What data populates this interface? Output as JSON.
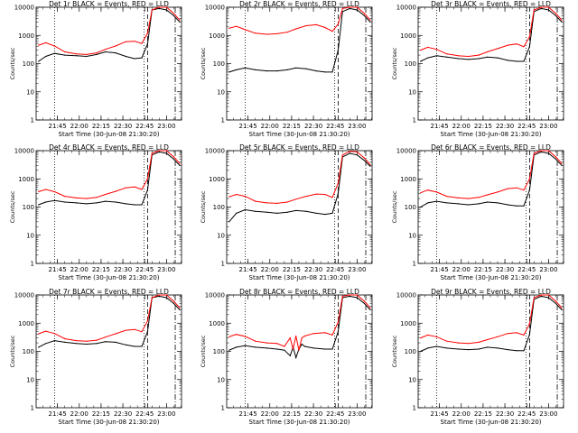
{
  "layout": {
    "title_pattern": "Det {n}r BLACK = Events, RED = LLD"
  },
  "colors": {
    "events": "#000000",
    "lld": "#ff0000",
    "background": "#ffffff"
  },
  "chart_data": {
    "type": "line",
    "xlabel": "Start Time (30-Jun-08 21:30:20)",
    "ylabel": "Counts/sec",
    "ylim": [
      1,
      10000
    ],
    "yscale": "log",
    "xlim": [
      "21:30:20",
      "23:10:20"
    ],
    "x_ticks": [
      "21:45",
      "22:00",
      "22:15",
      "22:30",
      "22:45",
      "23:00"
    ],
    "y_ticks": [
      "1",
      "10",
      "100",
      "1000",
      "10000"
    ],
    "vlines_dotted": [
      "21:43:00",
      "22:44:30"
    ],
    "vlines_dashed": [
      "22:47:00"
    ],
    "vlines_dashdot": [
      "23:06:00"
    ],
    "panels": [
      {
        "title": "Det 1r BLACK = Events, RED = LLD",
        "series": [
          {
            "name": "BLACK = Events",
            "x": [
              "21:32",
              "21:37",
              "21:43",
              "21:50",
              "21:58",
              "22:05",
              "22:12",
              "22:18",
              "22:25",
              "22:32",
              "22:38",
              "22:43",
              "22:47",
              "22:50",
              "22:55",
              "23:00",
              "23:05",
              "23:09"
            ],
            "y": [
              120,
              180,
              230,
              200,
              190,
              180,
              210,
              260,
              240,
              180,
              150,
              160,
              500,
              8000,
              9000,
              8000,
              5000,
              3000
            ]
          },
          {
            "name": "RED = LLD",
            "x": [
              "21:32",
              "21:37",
              "21:43",
              "21:50",
              "21:58",
              "22:05",
              "22:12",
              "22:18",
              "22:25",
              "22:32",
              "22:38",
              "22:43",
              "22:47",
              "22:50",
              "22:55",
              "23:00",
              "23:05",
              "23:09"
            ],
            "y": [
              450,
              550,
              420,
              260,
              220,
              210,
              240,
              320,
              420,
              600,
              620,
              520,
              1200,
              8000,
              11000,
              10000,
              6000,
              3500
            ]
          }
        ]
      },
      {
        "title": "Det 2r BLACK = Events, RED = LLD",
        "series": [
          {
            "name": "BLACK = Events",
            "x": [
              "21:32",
              "21:37",
              "21:43",
              "21:50",
              "21:58",
              "22:05",
              "22:12",
              "22:18",
              "22:25",
              "22:32",
              "22:38",
              "22:43",
              "22:47",
              "22:50",
              "22:55",
              "23:00",
              "23:05",
              "23:09"
            ],
            "y": [
              50,
              60,
              70,
              60,
              55,
              55,
              60,
              70,
              65,
              55,
              50,
              50,
              300,
              7000,
              9000,
              8000,
              5000,
              3000
            ]
          },
          {
            "name": "RED = LLD",
            "x": [
              "21:32",
              "21:37",
              "21:43",
              "21:50",
              "21:58",
              "22:05",
              "22:12",
              "22:18",
              "22:25",
              "22:32",
              "22:38",
              "22:43",
              "22:47",
              "22:50",
              "22:55",
              "23:00",
              "23:05",
              "23:09"
            ],
            "y": [
              1800,
              2100,
              1600,
              1200,
              1100,
              1150,
              1300,
              1700,
              2200,
              2400,
              1900,
              1400,
              2500,
              9000,
              12000,
              10000,
              6000,
              3500
            ]
          }
        ]
      },
      {
        "title": "Det 3r BLACK = Events, RED = LLD",
        "series": [
          {
            "name": "BLACK = Events",
            "x": [
              "21:32",
              "21:37",
              "21:43",
              "21:50",
              "21:58",
              "22:05",
              "22:12",
              "22:18",
              "22:25",
              "22:32",
              "22:38",
              "22:43",
              "22:47",
              "22:50",
              "22:55",
              "23:00",
              "23:05",
              "23:09"
            ],
            "y": [
              120,
              160,
              190,
              170,
              150,
              140,
              150,
              170,
              160,
              130,
              120,
              120,
              400,
              7000,
              9000,
              8000,
              5000,
              3000
            ]
          },
          {
            "name": "RED = LLD",
            "x": [
              "21:32",
              "21:37",
              "21:43",
              "21:50",
              "21:58",
              "22:05",
              "22:12",
              "22:18",
              "22:25",
              "22:32",
              "22:38",
              "22:43",
              "22:47",
              "22:50",
              "22:55",
              "23:00",
              "23:05",
              "23:09"
            ],
            "y": [
              300,
              380,
              320,
              220,
              190,
              180,
              200,
              260,
              340,
              450,
              500,
              400,
              900,
              8000,
              11000,
              10000,
              6000,
              3500
            ]
          }
        ]
      },
      {
        "title": "Det 4r BLACK = Events, RED = LLD",
        "series": [
          {
            "name": "BLACK = Events",
            "x": [
              "21:32",
              "21:37",
              "21:43",
              "21:50",
              "21:58",
              "22:05",
              "22:12",
              "22:18",
              "22:25",
              "22:32",
              "22:38",
              "22:43",
              "22:47",
              "22:50",
              "22:55",
              "23:00",
              "23:05",
              "23:09"
            ],
            "y": [
              120,
              150,
              170,
              150,
              140,
              130,
              140,
              160,
              150,
              130,
              120,
              120,
              400,
              7000,
              9000,
              8000,
              5000,
              3000
            ]
          },
          {
            "name": "RED = LLD",
            "x": [
              "21:32",
              "21:37",
              "21:43",
              "21:50",
              "21:58",
              "22:05",
              "22:12",
              "22:18",
              "22:25",
              "22:32",
              "22:38",
              "22:43",
              "22:47",
              "22:50",
              "22:55",
              "23:00",
              "23:05",
              "23:09"
            ],
            "y": [
              350,
              420,
              350,
              240,
              210,
              200,
              220,
              280,
              360,
              480,
              520,
              420,
              1000,
              8000,
              11000,
              10000,
              6000,
              3500
            ]
          }
        ]
      },
      {
        "title": "Det 5r BLACK = Events, RED = LLD",
        "series": [
          {
            "name": "BLACK = Events",
            "x": [
              "21:32",
              "21:37",
              "21:43",
              "21:50",
              "21:58",
              "22:05",
              "22:12",
              "22:18",
              "22:25",
              "22:32",
              "22:38",
              "22:43",
              "22:47",
              "22:50",
              "22:55",
              "23:00",
              "23:05",
              "23:09"
            ],
            "y": [
              30,
              60,
              80,
              70,
              65,
              60,
              65,
              75,
              70,
              60,
              55,
              60,
              300,
              6000,
              8000,
              7000,
              4500,
              2800
            ]
          },
          {
            "name": "RED = LLD",
            "x": [
              "21:32",
              "21:37",
              "21:43",
              "21:50",
              "21:58",
              "22:05",
              "22:12",
              "22:18",
              "22:25",
              "22:32",
              "22:38",
              "22:43",
              "22:47",
              "22:50",
              "22:55",
              "23:00",
              "23:05",
              "23:09"
            ],
            "y": [
              230,
              280,
              240,
              160,
              140,
              135,
              150,
              190,
              240,
              290,
              280,
              220,
              700,
              7000,
              9500,
              9000,
              5500,
              3200
            ]
          }
        ]
      },
      {
        "title": "Det 6r BLACK = Events, RED = LLD",
        "series": [
          {
            "name": "BLACK = Events",
            "x": [
              "21:32",
              "21:37",
              "21:43",
              "21:50",
              "21:58",
              "22:05",
              "22:12",
              "22:18",
              "22:25",
              "22:32",
              "22:38",
              "22:43",
              "22:47",
              "22:50",
              "22:55",
              "23:00",
              "23:05",
              "23:09"
            ],
            "y": [
              100,
              140,
              160,
              140,
              130,
              120,
              130,
              150,
              140,
              120,
              110,
              110,
              400,
              7000,
              9000,
              8000,
              5000,
              3000
            ]
          },
          {
            "name": "RED = LLD",
            "x": [
              "21:32",
              "21:37",
              "21:43",
              "21:50",
              "21:58",
              "22:05",
              "22:12",
              "22:18",
              "22:25",
              "22:32",
              "22:38",
              "22:43",
              "22:47",
              "22:50",
              "22:55",
              "23:00",
              "23:05",
              "23:09"
            ],
            "y": [
              320,
              400,
              340,
              240,
              210,
              200,
              220,
              270,
              340,
              450,
              480,
              400,
              1000,
              8000,
              11000,
              10000,
              6000,
              3500
            ]
          }
        ]
      },
      {
        "title": "Det 7r BLACK = Events, RED = LLD",
        "series": [
          {
            "name": "BLACK = Events",
            "x": [
              "21:32",
              "21:37",
              "21:43",
              "21:50",
              "21:58",
              "22:05",
              "22:12",
              "22:18",
              "22:25",
              "22:32",
              "22:38",
              "22:43",
              "22:47",
              "22:50",
              "22:55",
              "23:00",
              "23:05",
              "23:09"
            ],
            "y": [
              140,
              190,
              240,
              210,
              190,
              180,
              190,
              220,
              210,
              170,
              150,
              150,
              500,
              8000,
              9000,
              8000,
              5000,
              3000
            ]
          },
          {
            "name": "RED = LLD",
            "x": [
              "21:32",
              "21:37",
              "21:43",
              "21:50",
              "21:58",
              "22:05",
              "22:12",
              "22:18",
              "22:25",
              "22:32",
              "22:38",
              "22:43",
              "22:47",
              "22:50",
              "22:55",
              "23:00",
              "23:05",
              "23:09"
            ],
            "y": [
              420,
              520,
              430,
              280,
              240,
              230,
              250,
              320,
              420,
              560,
              600,
              500,
              1200,
              8000,
              11000,
              10000,
              6000,
              3500
            ]
          }
        ]
      },
      {
        "title": "Det 8r BLACK = Events, RED = LLD",
        "series": [
          {
            "name": "BLACK = Events",
            "x": [
              "21:32",
              "21:37",
              "21:43",
              "21:50",
              "21:58",
              "22:05",
              "22:10",
              "22:14",
              "22:16",
              "22:18",
              "22:20",
              "22:22",
              "22:24",
              "22:30",
              "22:38",
              "22:43",
              "22:47",
              "22:50",
              "22:55",
              "23:00",
              "23:05",
              "23:09"
            ],
            "y": [
              110,
              140,
              160,
              140,
              130,
              120,
              110,
              70,
              140,
              60,
              120,
              180,
              150,
              130,
              120,
              120,
              500,
              8000,
              9000,
              8000,
              5000,
              3000
            ]
          },
          {
            "name": "RED = LLD",
            "x": [
              "21:32",
              "21:37",
              "21:43",
              "21:50",
              "21:58",
              "22:05",
              "22:10",
              "22:14",
              "22:16",
              "22:18",
              "22:20",
              "22:22",
              "22:24",
              "22:30",
              "22:38",
              "22:43",
              "22:47",
              "22:50",
              "22:55",
              "23:00",
              "23:05",
              "23:09"
            ],
            "y": [
              330,
              400,
              340,
              230,
              200,
              190,
              150,
              300,
              120,
              350,
              110,
              300,
              350,
              430,
              460,
              380,
              1100,
              9000,
              12000,
              10000,
              6000,
              3500
            ]
          }
        ]
      },
      {
        "title": "Det 9r BLACK = Events, RED = LLD",
        "series": [
          {
            "name": "BLACK = Events",
            "x": [
              "21:32",
              "21:37",
              "21:43",
              "21:50",
              "21:58",
              "22:05",
              "22:12",
              "22:18",
              "22:25",
              "22:32",
              "22:38",
              "22:43",
              "22:47",
              "22:50",
              "22:55",
              "23:00",
              "23:05",
              "23:09"
            ],
            "y": [
              100,
              130,
              150,
              130,
              120,
              115,
              120,
              140,
              130,
              115,
              105,
              105,
              400,
              7000,
              9000,
              8000,
              5000,
              3000
            ]
          },
          {
            "name": "RED = LLD",
            "x": [
              "21:32",
              "21:37",
              "21:43",
              "21:50",
              "21:58",
              "22:05",
              "22:12",
              "22:18",
              "22:25",
              "22:32",
              "22:38",
              "22:43",
              "22:47",
              "22:50",
              "22:55",
              "23:00",
              "23:05",
              "23:09"
            ],
            "y": [
              300,
              380,
              330,
              230,
              200,
              190,
              210,
              260,
              330,
              430,
              460,
              380,
              950,
              8000,
              11000,
              10000,
              6000,
              3500
            ]
          }
        ]
      }
    ]
  }
}
